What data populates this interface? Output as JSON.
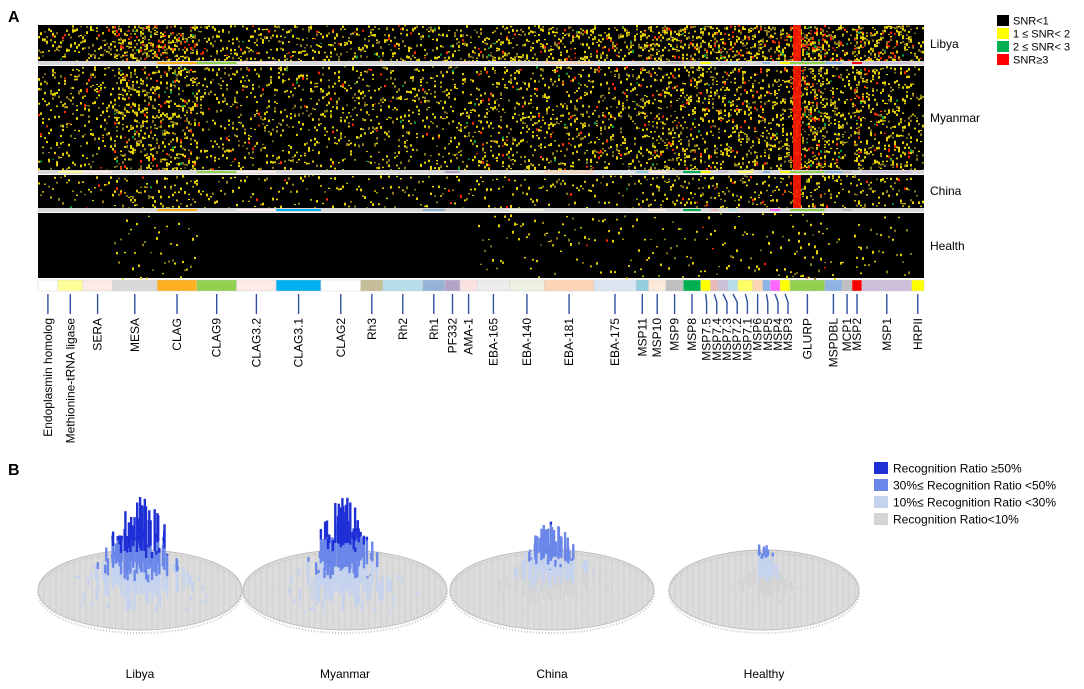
{
  "panel_a": {
    "label": "A",
    "chart_data": {
      "type": "heatmap",
      "title": "",
      "xlabel": "",
      "ylabel": "",
      "rows": [
        "Libya",
        "Myanmar",
        "China",
        "Health"
      ],
      "legend": [
        {
          "label": "SNR<1",
          "color": "#000000"
        },
        {
          "label": "1 ≤ SNR< 2",
          "color": "#ffff00"
        },
        {
          "label": "2 ≤ SNR< 3",
          "color": "#00b050"
        },
        {
          "label": "SNR≥3",
          "color": "#ff0000"
        }
      ],
      "legend_position": "top-right",
      "proteins": [
        {
          "name": "Endoplasmin homolog",
          "color": "#ffffff"
        },
        {
          "name": "Methionine-tRNA ligase",
          "color": "#ffff99"
        },
        {
          "name": "SERA",
          "color": "#fde9e7"
        },
        {
          "name": "MESA",
          "color": "#d9d9d9"
        },
        {
          "name": "CLAG",
          "color": "#ffb020"
        },
        {
          "name": "CLAG9",
          "color": "#92d050"
        },
        {
          "name": "CLAG3.2",
          "color": "#fde9e7"
        },
        {
          "name": "CLAG3.1",
          "color": "#00b0f0"
        },
        {
          "name": "CLAG2",
          "color": "#ffffff"
        },
        {
          "name": "Rh3",
          "color": "#c4bd97"
        },
        {
          "name": "Rh2",
          "color": "#b7dde8"
        },
        {
          "name": "Rh1",
          "color": "#95b3d7"
        },
        {
          "name": "PF332",
          "color": "#b3a2c7"
        },
        {
          "name": "AMA-1",
          "color": "#f9e1e1"
        },
        {
          "name": "EBA-165",
          "color": "#ececec"
        },
        {
          "name": "EBA-140",
          "color": "#ebf1de"
        },
        {
          "name": "EBA-181",
          "color": "#fbd5b5"
        },
        {
          "name": "EBA-175",
          "color": "#dbe5f1"
        },
        {
          "name": "MSP11",
          "color": "#92cddc"
        },
        {
          "name": "MSP10",
          "color": "#fde9d9"
        },
        {
          "name": "MSP9",
          "color": "#bfbfbf"
        },
        {
          "name": "MSP8",
          "color": "#00b050"
        },
        {
          "name": "MSP7.5",
          "color": "#ffff00"
        },
        {
          "name": "MSP7.4",
          "color": "#e6b9b8"
        },
        {
          "name": "MSP7.3",
          "color": "#ccc0da"
        },
        {
          "name": "MSP7.2",
          "color": "#b7dee8"
        },
        {
          "name": "MSP7.1",
          "color": "#ffff66"
        },
        {
          "name": "MSP6",
          "color": "#fcd5b4"
        },
        {
          "name": "MSP5",
          "color": "#8db3e2"
        },
        {
          "name": "MSP4",
          "color": "#ff66ff"
        },
        {
          "name": "MSP3",
          "color": "#ffff00"
        },
        {
          "name": "GLURP",
          "color": "#92d050"
        },
        {
          "name": "MSPDBL",
          "color": "#8db4e2"
        },
        {
          "name": "MCP1",
          "color": "#bfbfbf"
        },
        {
          "name": "MSP2",
          "color": "#ff0000"
        },
        {
          "name": "MSP1",
          "color": "#ccc0da"
        },
        {
          "name": "HRPII",
          "color": "#ffff00"
        }
      ]
    }
  },
  "panel_b": {
    "label": "B",
    "chart_data": {
      "type": "bar",
      "title": "",
      "xlabel": "",
      "ylabel": "",
      "categories": [
        "Libya",
        "Myanmar",
        "China",
        "Healthy"
      ],
      "series": [
        {
          "name": "Recognition Ratio ≥50%",
          "color": "#1e2fd6",
          "values": [
            0.6,
            0.5,
            0.1,
            0.0
          ]
        },
        {
          "name": "30%≤ Recognition  Ratio <50%",
          "color": "#6a86e8",
          "values": [
            0.8,
            0.75,
            0.55,
            0.3
          ]
        },
        {
          "name": "10%≤ Recognition  Ratio <30%",
          "color": "#c5d3ee",
          "values": [
            1.0,
            1.0,
            0.8,
            0.7
          ]
        },
        {
          "name": "Recognition Ratio<10%",
          "color": "#d4d4d4",
          "values": [
            1.0,
            1.0,
            1.0,
            1.0
          ]
        }
      ],
      "relative_peak_height": [
        1.0,
        0.88,
        0.66,
        0.45
      ],
      "legend_position": "top-right"
    }
  }
}
